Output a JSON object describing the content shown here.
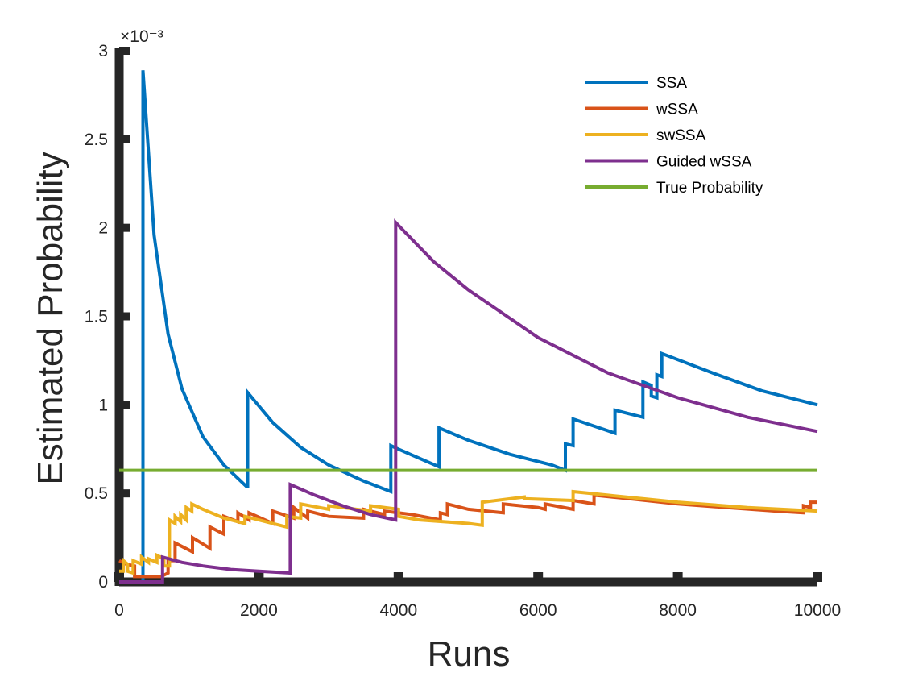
{
  "chart_data": {
    "type": "line",
    "xlabel": "Runs",
    "ylabel": "Estimated Probability",
    "xlim": [
      0,
      10000
    ],
    "ylim": [
      0,
      0.003
    ],
    "x_ticks": [
      0,
      2000,
      4000,
      6000,
      8000,
      10000
    ],
    "x_tick_labels": [
      "0",
      "2000",
      "4000",
      "6000",
      "8000",
      "10000"
    ],
    "y_ticks": [
      0,
      0.0005,
      0.001,
      0.0015,
      0.002,
      0.0025,
      0.003
    ],
    "y_tick_labels": [
      "0",
      "0.5",
      "1",
      "1.5",
      "2",
      "2.5",
      "3"
    ],
    "y_exponent_label": "×10⁻³",
    "grid": false,
    "legend_position": "top-right",
    "series": [
      {
        "name": "SSA",
        "color": "#0072BD",
        "points": [
          [
            0,
            0
          ],
          [
            340,
            0
          ],
          [
            340,
            0.00289
          ],
          [
            500,
            0.00196
          ],
          [
            700,
            0.0014
          ],
          [
            900,
            0.00109
          ],
          [
            1200,
            0.00082
          ],
          [
            1500,
            0.00066
          ],
          [
            1820,
            0.00054
          ],
          [
            1840,
            0.00054
          ],
          [
            1840,
            0.00107
          ],
          [
            2200,
            0.0009
          ],
          [
            2600,
            0.00076
          ],
          [
            3000,
            0.00066
          ],
          [
            3500,
            0.00057
          ],
          [
            3890,
            0.00051
          ],
          [
            3890,
            0.00077
          ],
          [
            4000,
            0.00075
          ],
          [
            4580,
            0.00065
          ],
          [
            4580,
            0.00087
          ],
          [
            5000,
            0.0008
          ],
          [
            5600,
            0.00072
          ],
          [
            6200,
            0.00066
          ],
          [
            6390,
            0.00063
          ],
          [
            6390,
            0.00078
          ],
          [
            6500,
            0.00077
          ],
          [
            6500,
            0.00092
          ],
          [
            7100,
            0.00084
          ],
          [
            7100,
            0.00097
          ],
          [
            7500,
            0.00093
          ],
          [
            7500,
            0.00113
          ],
          [
            7620,
            0.00111
          ],
          [
            7620,
            0.00105
          ],
          [
            7700,
            0.00104
          ],
          [
            7700,
            0.00117
          ],
          [
            7770,
            0.00116
          ],
          [
            7770,
            0.00129
          ],
          [
            8500,
            0.00118
          ],
          [
            9200,
            0.00108
          ],
          [
            10000,
            0.001
          ]
        ]
      },
      {
        "name": "wSSA",
        "color": "#D95319",
        "points": [
          [
            0,
            0.00012
          ],
          [
            100,
            0.0001
          ],
          [
            220,
            9e-05
          ],
          [
            220,
            3e-05
          ],
          [
            600,
            3e-05
          ],
          [
            700,
            5e-05
          ],
          [
            700,
            0.00012
          ],
          [
            800,
            0.00012
          ],
          [
            800,
            0.00022
          ],
          [
            1050,
            0.00017
          ],
          [
            1050,
            0.00025
          ],
          [
            1300,
            0.00019
          ],
          [
            1300,
            0.00031
          ],
          [
            1500,
            0.00027
          ],
          [
            1500,
            0.00037
          ],
          [
            1700,
            0.00034
          ],
          [
            1700,
            0.00039
          ],
          [
            1860,
            0.00035
          ],
          [
            1860,
            0.00039
          ],
          [
            2200,
            0.00033
          ],
          [
            2200,
            0.0004
          ],
          [
            2500,
            0.00036
          ],
          [
            2500,
            0.00042
          ],
          [
            2700,
            0.00036
          ],
          [
            2700,
            0.0004
          ],
          [
            3000,
            0.00037
          ],
          [
            3500,
            0.00036
          ],
          [
            3500,
            0.00041
          ],
          [
            3800,
            0.00038
          ],
          [
            3800,
            0.0004
          ],
          [
            4200,
            0.00038
          ],
          [
            4600,
            0.00035
          ],
          [
            4600,
            0.00039
          ],
          [
            4700,
            0.00038
          ],
          [
            4700,
            0.00044
          ],
          [
            5000,
            0.00041
          ],
          [
            5500,
            0.00039
          ],
          [
            5500,
            0.00044
          ],
          [
            6000,
            0.00042
          ],
          [
            6100,
            0.00041
          ],
          [
            6100,
            0.00044
          ],
          [
            6500,
            0.00041
          ],
          [
            6500,
            0.00046
          ],
          [
            6800,
            0.00044
          ],
          [
            6800,
            0.00049
          ],
          [
            7300,
            0.00047
          ],
          [
            8000,
            0.00044
          ],
          [
            8700,
            0.00042
          ],
          [
            9400,
            0.0004
          ],
          [
            9800,
            0.00039
          ],
          [
            9800,
            0.00043
          ],
          [
            9900,
            0.00042
          ],
          [
            9900,
            0.00045
          ],
          [
            10000,
            0.00045
          ]
        ]
      },
      {
        "name": "swSSA",
        "color": "#EDB120",
        "points": [
          [
            0,
            6e-05
          ],
          [
            60,
            6e-05
          ],
          [
            60,
            0.00012
          ],
          [
            120,
            0.0001
          ],
          [
            120,
            6e-05
          ],
          [
            200,
            5e-05
          ],
          [
            200,
            0.00012
          ],
          [
            320,
            0.0001
          ],
          [
            320,
            0.00014
          ],
          [
            420,
            0.00011
          ],
          [
            420,
            0.00013
          ],
          [
            540,
            0.00011
          ],
          [
            540,
            0.00015
          ],
          [
            640,
            0.00013
          ],
          [
            640,
            9e-05
          ],
          [
            720,
            9e-05
          ],
          [
            720,
            0.00035
          ],
          [
            800,
            0.00033
          ],
          [
            800,
            0.00037
          ],
          [
            880,
            0.00034
          ],
          [
            880,
            0.00038
          ],
          [
            960,
            0.00035
          ],
          [
            960,
            0.00042
          ],
          [
            1040,
            0.0004
          ],
          [
            1040,
            0.00044
          ],
          [
            1200,
            0.00041
          ],
          [
            1500,
            0.00036
          ],
          [
            1800,
            0.00033
          ],
          [
            1800,
            0.00037
          ],
          [
            2400,
            0.00031
          ],
          [
            2400,
            0.00037
          ],
          [
            2600,
            0.00036
          ],
          [
            2600,
            0.00044
          ],
          [
            3000,
            0.00041
          ],
          [
            3000,
            0.00043
          ],
          [
            3600,
            0.0004
          ],
          [
            3600,
            0.00043
          ],
          [
            4000,
            0.00041
          ],
          [
            4000,
            0.00037
          ],
          [
            4300,
            0.00035
          ],
          [
            5000,
            0.00033
          ],
          [
            5200,
            0.00032
          ],
          [
            5200,
            0.00045
          ],
          [
            5800,
            0.00048
          ],
          [
            5800,
            0.00047
          ],
          [
            6500,
            0.00046
          ],
          [
            6500,
            0.00051
          ],
          [
            7000,
            0.00049
          ],
          [
            8000,
            0.00045
          ],
          [
            9000,
            0.00042
          ],
          [
            10000,
            0.0004
          ]
        ]
      },
      {
        "name": "Guided wSSA",
        "color": "#7E2F8E",
        "points": [
          [
            0,
            0
          ],
          [
            620,
            0
          ],
          [
            620,
            0.00014
          ],
          [
            900,
            0.00011
          ],
          [
            1200,
            9e-05
          ],
          [
            1600,
            7e-05
          ],
          [
            2000,
            6e-05
          ],
          [
            2450,
            5e-05
          ],
          [
            2450,
            0.00055
          ],
          [
            2800,
            0.00049
          ],
          [
            3200,
            0.00043
          ],
          [
            3600,
            0.00038
          ],
          [
            3960,
            0.00035
          ],
          [
            3960,
            0.00203
          ],
          [
            4500,
            0.00181
          ],
          [
            5000,
            0.00165
          ],
          [
            6000,
            0.00138
          ],
          [
            7000,
            0.00118
          ],
          [
            8000,
            0.00104
          ],
          [
            9000,
            0.00093
          ],
          [
            10000,
            0.00085
          ]
        ]
      },
      {
        "name": "True Probability",
        "color": "#77AC30",
        "points": [
          [
            0,
            0.00063
          ],
          [
            10000,
            0.00063
          ]
        ]
      }
    ]
  }
}
